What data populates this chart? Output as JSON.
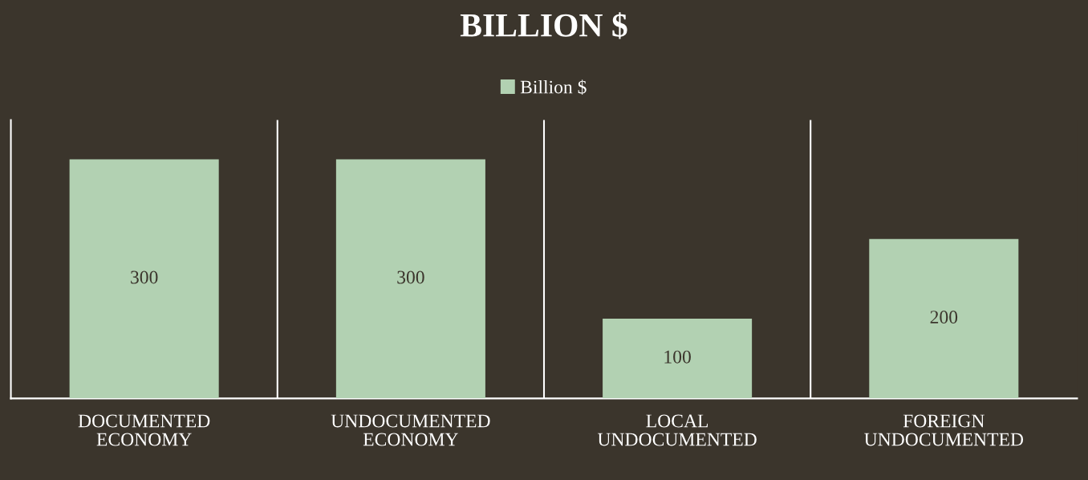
{
  "chart_data": {
    "type": "bar",
    "title": "BILLION $",
    "categories": [
      "DOCUMENTED\nECONOMY",
      "UNDOCUMENTED\nECONOMY",
      "LOCAL\nUNDOCUMENTED",
      "FOREIGN\nUNDOCUMENTED"
    ],
    "series": [
      {
        "name": "Billion $",
        "color": "#b2d1b2",
        "values": [
          300,
          300,
          100,
          200
        ]
      }
    ],
    "data_labels": true,
    "legend": "top",
    "grid": "x",
    "tick_labels": "x"
  }
}
